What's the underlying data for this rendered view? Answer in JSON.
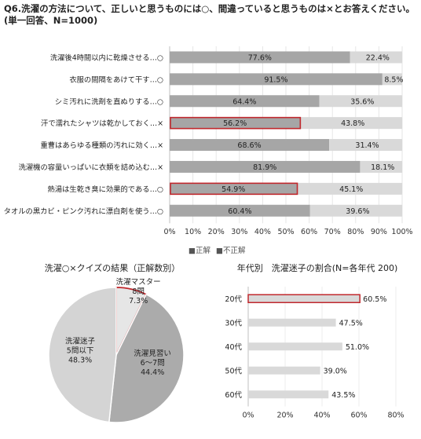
{
  "header": {
    "line1": "Q6.洗濯の方法について、正しいと思うものには○、間違っていると思うものは×とお答えください。",
    "line2": "(単一回答、N=1000)"
  },
  "colors": {
    "correct": "#a6a6a6",
    "incorrect": "#d9d9d9",
    "highlight": "#c0282d",
    "axis": "#bfbfbf"
  },
  "chart_data": [
    {
      "type": "bar",
      "stacked": true,
      "orientation": "horizontal",
      "categories": [
        "洗濯後4時間以内に乾燥させる…○",
        "衣服の間隔をあけて干す…○",
        "シミ汚れに洗剤を直ぬりする…○",
        "汗で濡れたシャツは乾かしておく…×",
        "重曹はあらゆる種類の汚れに効く…×",
        "洗濯機の容量いっぱいに衣類を詰め込む…×",
        "熱湯は生乾き臭に効果的である…○",
        "タオルの黒カビ・ピンク汚れに漂白剤を使う…○"
      ],
      "series": [
        {
          "name": "正解",
          "values": [
            77.6,
            91.5,
            64.4,
            56.2,
            68.6,
            81.9,
            54.9,
            60.4
          ]
        },
        {
          "name": "不正解",
          "values": [
            22.4,
            8.5,
            35.6,
            43.8,
            31.4,
            18.1,
            45.1,
            39.6
          ]
        }
      ],
      "data_labels": {
        "correct": [
          "77.6%",
          "91.5%",
          "64.4%",
          "56.2%",
          "68.6%",
          "81.9%",
          "54.9%",
          "60.4%"
        ],
        "incorrect": [
          "22.4%",
          "8.5%",
          "35.6%",
          "43.8%",
          "31.4%",
          "18.1%",
          "45.1%",
          "39.6%"
        ]
      },
      "highlighted": [
        3,
        6
      ],
      "xlim": [
        0,
        100
      ],
      "xticks": [
        "0%",
        "10%",
        "20%",
        "30%",
        "40%",
        "50%",
        "60%",
        "70%",
        "80%",
        "90%",
        "100%"
      ],
      "legend": [
        "■正解",
        "■不正解"
      ],
      "legend_position": "bottom"
    },
    {
      "type": "pie",
      "title": "洗濯○×クイズの結果（正解数別）",
      "slices": [
        {
          "name": "洗濯マスター",
          "detail": "8問",
          "value": 7.3,
          "label": "7.3%",
          "color": "#e6e6e6",
          "highlight": true
        },
        {
          "name": "洗濯見習い",
          "detail": "6～7問",
          "value": 44.4,
          "label": "44.4%",
          "color": "#ababab"
        },
        {
          "name": "洗濯迷子",
          "detail": "5問以下",
          "value": 48.3,
          "label": "48.3%",
          "color": "#d4d4d4"
        }
      ]
    },
    {
      "type": "bar",
      "orientation": "horizontal",
      "title": "年代別　洗濯迷子の割合(N=各年代 200)",
      "categories": [
        "20代",
        "30代",
        "40代",
        "50代",
        "60代"
      ],
      "values": [
        60.5,
        47.5,
        51.0,
        39.0,
        43.5
      ],
      "value_labels": [
        "60.5%",
        "47.5%",
        "51.0%",
        "39.0%",
        "43.5%"
      ],
      "highlighted": [
        0
      ],
      "xlim": [
        0,
        80
      ],
      "xticks": [
        "0%",
        "20%",
        "40%",
        "60%",
        "80%"
      ]
    }
  ]
}
